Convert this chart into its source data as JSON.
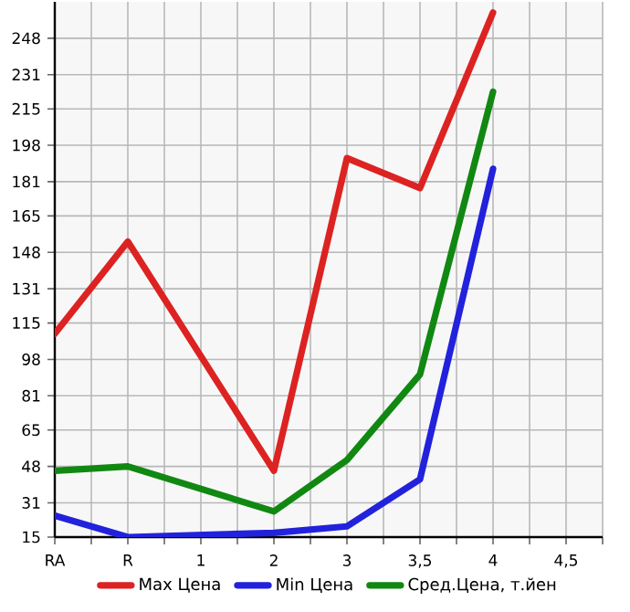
{
  "chart_data": {
    "type": "line",
    "categories": [
      "RA",
      "R",
      "1",
      "2",
      "3",
      "3,5",
      "4",
      "4,5"
    ],
    "series": [
      {
        "name": "Max Цена",
        "color": "#dd2222",
        "values": [
          110,
          153,
          null,
          46,
          192,
          178,
          260,
          null
        ]
      },
      {
        "name": "Min Цена",
        "color": "#2222dd",
        "values": [
          25,
          15,
          null,
          17,
          20,
          42,
          187,
          null
        ]
      },
      {
        "name": "Сред.Цена, т.йен",
        "color": "#118811",
        "values": [
          46,
          48,
          null,
          27,
          51,
          91,
          223,
          null
        ]
      }
    ],
    "ylim": [
      15,
      265
    ],
    "yticks": [
      15,
      31,
      48,
      65,
      81,
      98,
      115,
      131,
      148,
      165,
      181,
      198,
      215,
      231,
      248
    ],
    "grid": true,
    "legend": "bottom"
  }
}
